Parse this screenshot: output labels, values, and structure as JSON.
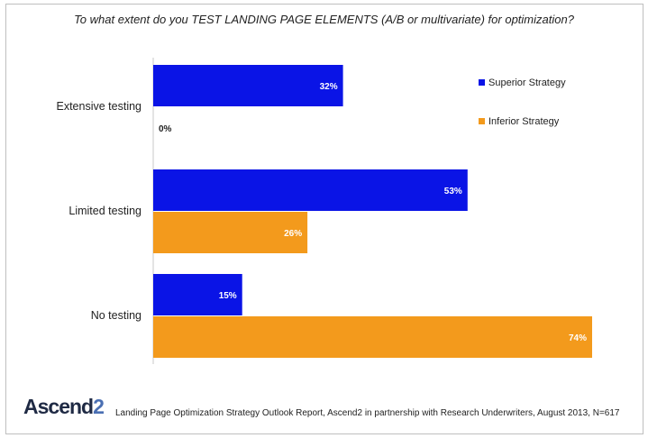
{
  "title": "To what extent do you TEST LANDING PAGE ELEMENTS (A/B or multivariate) for optimization?",
  "brand": {
    "name": "Ascend",
    "mark": "2"
  },
  "source": "Landing Page Optimization Strategy Outlook Report, Ascend2 in partnership with Research Underwriters, August 2013, N=617",
  "colors": {
    "superior": "#0a14e6",
    "inferior": "#f39a1c"
  },
  "chart_data": {
    "type": "bar",
    "orientation": "horizontal",
    "categories": [
      "Extensive testing",
      "Limited testing",
      "No testing"
    ],
    "series": [
      {
        "name": "Superior Strategy",
        "values": [
          32,
          53,
          15
        ],
        "labels": [
          "32%",
          "53%",
          "15%"
        ]
      },
      {
        "name": "Inferior Strategy",
        "values": [
          0,
          26,
          74
        ],
        "labels": [
          "0%",
          "26%",
          "74%"
        ]
      }
    ],
    "xlim": [
      0,
      74
    ],
    "legend": "right",
    "grid": false
  }
}
